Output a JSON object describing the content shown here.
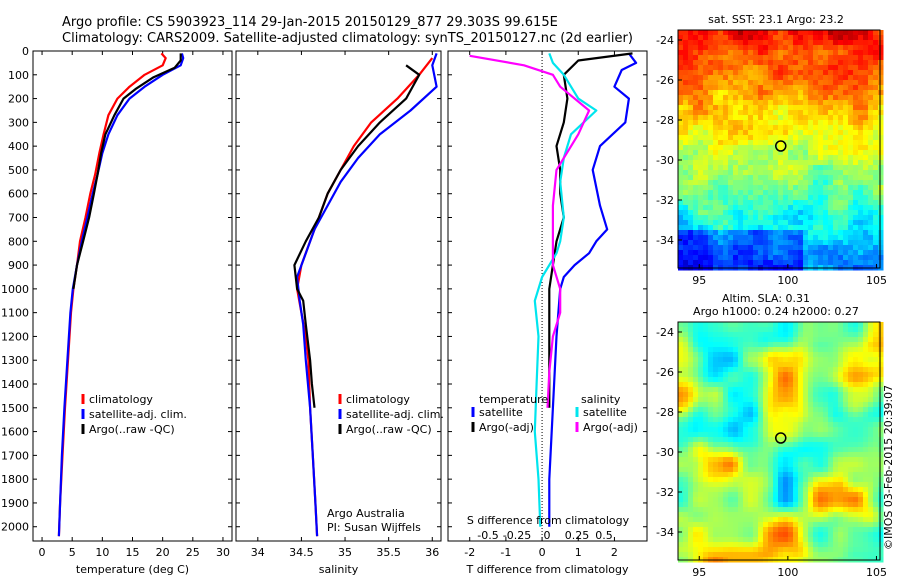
{
  "header": {
    "line1": "Argo profile: CS 5903923_114 29-Jan-2015 20150129_877 29.303S 99.615E",
    "line2": "Climatology: CARS2009. Satellite-adjusted climatology: synTS_20150127.nc (2d earlier)"
  },
  "colors": {
    "climatology": "#ff0000",
    "satellite": "#0000ff",
    "argo": "#000000",
    "argo_salinity": "#ff00ff",
    "satellite_salinity": "#00e5ee"
  },
  "chart_data": [
    {
      "id": "temperature",
      "type": "line",
      "xlabel": "temperature (deg C)",
      "xlim": [
        -1.5,
        31.5
      ],
      "xticks": [
        0,
        5,
        10,
        15,
        20,
        25,
        30
      ],
      "ylim": [
        0,
        2060
      ],
      "yticks": [
        0,
        100,
        200,
        300,
        400,
        500,
        600,
        700,
        800,
        900,
        1000,
        1100,
        1200,
        1300,
        1400,
        1500,
        1600,
        1700,
        1800,
        1900,
        2000
      ],
      "legend": [
        "climatology",
        "satellite-adj. clim.",
        "Argo(..raw -QC)"
      ],
      "series": [
        {
          "name": "climatology",
          "color": "#ff0000",
          "points": [
            [
              19.8,
              10
            ],
            [
              20.5,
              30
            ],
            [
              20,
              60
            ],
            [
              17,
              100
            ],
            [
              14.5,
              150
            ],
            [
              12.5,
              200
            ],
            [
              11,
              270
            ],
            [
              10.2,
              350
            ],
            [
              9.5,
              430
            ],
            [
              8.8,
              520
            ],
            [
              8,
              600
            ],
            [
              7.2,
              700
            ],
            [
              6.3,
              800
            ],
            [
              5.8,
              900
            ],
            [
              5.2,
              1000
            ],
            [
              4.8,
              1100
            ],
            [
              4.3,
              1300
            ],
            [
              3.8,
              1500
            ],
            [
              3.4,
              1700
            ],
            [
              3.0,
              1900
            ],
            [
              2.8,
              2040
            ]
          ]
        },
        {
          "name": "satellite-adj. clim.",
          "color": "#0000ff",
          "points": [
            [
              23.2,
              10
            ],
            [
              23.4,
              30
            ],
            [
              23,
              60
            ],
            [
              20,
              100
            ],
            [
              17,
              150
            ],
            [
              14.5,
              200
            ],
            [
              12.5,
              270
            ],
            [
              11,
              350
            ],
            [
              10,
              430
            ],
            [
              9.2,
              520
            ],
            [
              8.4,
              600
            ],
            [
              7.5,
              700
            ],
            [
              6.6,
              800
            ],
            [
              5.8,
              900
            ],
            [
              5.1,
              1000
            ],
            [
              4.7,
              1100
            ],
            [
              4.2,
              1300
            ],
            [
              3.7,
              1500
            ],
            [
              3.3,
              1700
            ],
            [
              3.0,
              1900
            ],
            [
              2.8,
              2040
            ]
          ]
        },
        {
          "name": "Argo(..raw -QC)",
          "color": "#000000",
          "points": [
            [
              23,
              10
            ],
            [
              23,
              40
            ],
            [
              22,
              70
            ],
            [
              18.5,
              110
            ],
            [
              15.5,
              160
            ],
            [
              13.5,
              200
            ],
            [
              12,
              270
            ],
            [
              10.5,
              350
            ],
            [
              9.8,
              430
            ],
            [
              9.2,
              520
            ],
            [
              8.6,
              600
            ],
            [
              7.8,
              700
            ],
            [
              6.8,
              800
            ],
            [
              5.8,
              900
            ],
            [
              5.2,
              1000
            ]
          ]
        }
      ]
    },
    {
      "id": "salinity",
      "type": "line",
      "xlabel": "salinity",
      "xlim": [
        33.75,
        36.1
      ],
      "xticks": [
        34,
        34.5,
        35,
        35.5,
        36
      ],
      "xticklabels": [
        "34",
        "34.5",
        "35",
        "35.5",
        "36"
      ],
      "ylim": [
        0,
        2060
      ],
      "legend": [
        "climatology",
        "satellite-adj. clim.",
        "Argo(..raw -QC)"
      ],
      "annotations": [
        "Argo Australia",
        "PI: Susan Wijffels"
      ],
      "series": [
        {
          "name": "climatology",
          "color": "#ff0000",
          "points": [
            [
              36.0,
              30
            ],
            [
              35.85,
              100
            ],
            [
              35.6,
              200
            ],
            [
              35.3,
              300
            ],
            [
              35.1,
              400
            ],
            [
              34.95,
              500
            ],
            [
              34.8,
              600
            ],
            [
              34.7,
              700
            ],
            [
              34.6,
              800
            ],
            [
              34.5,
              900
            ],
            [
              34.45,
              1000
            ],
            [
              34.5,
              1100
            ],
            [
              34.55,
              1200
            ],
            [
              34.58,
              1300
            ],
            [
              34.6,
              1500
            ],
            [
              34.63,
              1700
            ],
            [
              34.66,
              1900
            ],
            [
              34.68,
              2040
            ]
          ]
        },
        {
          "name": "satellite-adj. clim.",
          "color": "#0000ff",
          "points": [
            [
              36.05,
              10
            ],
            [
              36.0,
              60
            ],
            [
              36.05,
              150
            ],
            [
              35.75,
              250
            ],
            [
              35.4,
              350
            ],
            [
              35.15,
              450
            ],
            [
              34.95,
              550
            ],
            [
              34.8,
              650
            ],
            [
              34.65,
              750
            ],
            [
              34.55,
              850
            ],
            [
              34.45,
              950
            ],
            [
              34.48,
              1050
            ],
            [
              34.52,
              1150
            ],
            [
              34.55,
              1300
            ],
            [
              34.6,
              1500
            ],
            [
              34.63,
              1700
            ],
            [
              34.66,
              1900
            ],
            [
              34.68,
              2040
            ]
          ]
        },
        {
          "name": "Argo(..raw -QC)",
          "color": "#000000",
          "points": [
            [
              35.7,
              60
            ],
            [
              35.85,
              100
            ],
            [
              35.7,
              200
            ],
            [
              35.4,
              300
            ],
            [
              35.15,
              400
            ],
            [
              34.95,
              500
            ],
            [
              34.8,
              600
            ],
            [
              34.7,
              700
            ],
            [
              34.55,
              800
            ],
            [
              34.42,
              900
            ],
            [
              34.45,
              1000
            ],
            [
              34.52,
              1050
            ],
            [
              34.55,
              1150
            ],
            [
              34.6,
              1300
            ],
            [
              34.62,
              1400
            ],
            [
              34.65,
              1500
            ]
          ]
        }
      ]
    },
    {
      "id": "differences",
      "type": "line",
      "xlabel": "T difference from climatology",
      "xlim": [
        -2.6,
        2.9
      ],
      "xticks": [
        -2,
        -1,
        0,
        1,
        2
      ],
      "ylim": [
        0,
        2060
      ],
      "top_axis_label": "S difference from climatology",
      "top_ticks": [
        -0.5,
        -0.25,
        0,
        0.25,
        0.5
      ],
      "top_ticklabels": [
        "-0.5",
        "-0.25",
        "0",
        "0.25",
        "0.5"
      ],
      "legend_temperature_title": "temperature",
      "legend_salinity_title": "salinity",
      "legend": [
        "satellite",
        "Argo(-adj)",
        "satellite",
        "Argo(-adj)"
      ],
      "series": [
        {
          "name": "temperature satellite",
          "color": "#0000ff",
          "points": [
            [
              2.4,
              10
            ],
            [
              2.6,
              50
            ],
            [
              2.2,
              80
            ],
            [
              2.0,
              150
            ],
            [
              2.4,
              200
            ],
            [
              2.3,
              300
            ],
            [
              1.6,
              400
            ],
            [
              1.4,
              500
            ],
            [
              1.6,
              650
            ],
            [
              1.8,
              750
            ],
            [
              1.5,
              800
            ],
            [
              1.3,
              850
            ],
            [
              0.9,
              900
            ],
            [
              0.6,
              950
            ],
            [
              0.5,
              1000
            ],
            [
              0.4,
              1200
            ],
            [
              0.3,
              1500
            ],
            [
              0.2,
              1800
            ],
            [
              0.2,
              2000
            ]
          ]
        },
        {
          "name": "temperature Argo(-adj)",
          "color": "#000000",
          "points": [
            [
              2.5,
              10
            ],
            [
              1.0,
              40
            ],
            [
              0.6,
              100
            ],
            [
              0.7,
              200
            ],
            [
              0.6,
              300
            ],
            [
              0.4,
              400
            ],
            [
              0.5,
              500
            ],
            [
              0.5,
              600
            ],
            [
              0.6,
              700
            ],
            [
              0.4,
              800
            ],
            [
              0.3,
              900
            ],
            [
              0.2,
              1000
            ],
            [
              0.2,
              1200
            ],
            [
              0.2,
              1500
            ]
          ]
        },
        {
          "name": "salinity satellite",
          "color": "#00e5ee",
          "points": [
            [
              0.2,
              10
            ],
            [
              0.3,
              50
            ],
            [
              0.6,
              100
            ],
            [
              1.0,
              200
            ],
            [
              1.5,
              250
            ],
            [
              0.8,
              350
            ],
            [
              0.6,
              450
            ],
            [
              0.5,
              550
            ],
            [
              0.6,
              700
            ],
            [
              0.5,
              800
            ],
            [
              0.4,
              850
            ],
            [
              0,
              950
            ],
            [
              -0.2,
              1050
            ],
            [
              -0.1,
              1200
            ],
            [
              -0.15,
              1400
            ],
            [
              -0.2,
              1600
            ],
            [
              -0.1,
              1800
            ],
            [
              -0.05,
              2000
            ]
          ]
        },
        {
          "name": "salinity Argo(-adj)",
          "color": "#ff00ff",
          "points": [
            [
              -2,
              20
            ],
            [
              -0.5,
              60
            ],
            [
              0.3,
              100
            ],
            [
              0.5,
              150
            ],
            [
              1.3,
              250
            ],
            [
              1.0,
              350
            ],
            [
              0.4,
              500
            ],
            [
              0.3,
              650
            ],
            [
              0.3,
              800
            ],
            [
              0.3,
              900
            ],
            [
              0.5,
              1000
            ],
            [
              0.5,
              1100
            ],
            [
              0.3,
              1200
            ],
            [
              0.2,
              1350
            ],
            [
              0.15,
              1500
            ]
          ]
        }
      ]
    }
  ],
  "maps": {
    "sst_title": "sat. SST: 23.1 Argo: 23.2",
    "sla_title_line1": "Altim. SLA: 0.31",
    "sla_title_line2": "Argo h1000: 0.24 h2000: 0.27",
    "yticks": [
      -24,
      -26,
      -28,
      -30,
      -32,
      -34
    ],
    "yticklabels": [
      "-24",
      "-26",
      "-28",
      "-30",
      "-32",
      "-34"
    ],
    "xticks": [
      95,
      100,
      105
    ],
    "xticklabels": [
      "95",
      "100",
      "105"
    ],
    "marker_lon": 99.6,
    "marker_lat": -29.3
  },
  "credit": "©IMOS 03-Feb-2015 20:39:07"
}
